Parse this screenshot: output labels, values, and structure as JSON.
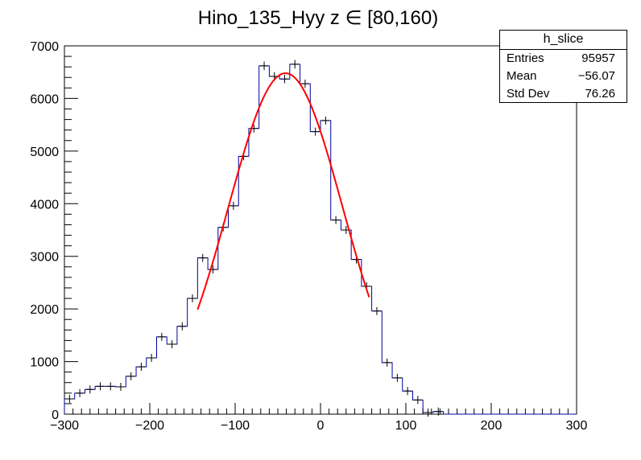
{
  "chart_data": {
    "type": "histogram",
    "title": "Hino_135_Hyy z  ∈ [80,160)",
    "xlabel": "",
    "ylabel": "",
    "xlim": [
      -300,
      300
    ],
    "ylim": [
      0,
      7000
    ],
    "x_ticks": [
      -300,
      -200,
      -100,
      0,
      100,
      200,
      300
    ],
    "x_tick_labels": [
      "−300",
      "−200",
      "−100",
      "0",
      "100",
      "200",
      "300"
    ],
    "y_ticks": [
      0,
      1000,
      2000,
      3000,
      4000,
      5000,
      6000,
      7000
    ],
    "y_tick_labels": [
      "0",
      "1000",
      "2000",
      "3000",
      "4000",
      "5000",
      "6000",
      "7000"
    ],
    "bin_width": 12,
    "bin_start": -300,
    "bin_values": [
      290,
      400,
      470,
      530,
      530,
      520,
      720,
      900,
      1070,
      1470,
      1330,
      1670,
      2200,
      2970,
      2750,
      3550,
      3960,
      4900,
      5430,
      6620,
      6420,
      6370,
      6650,
      6280,
      5370,
      5580,
      3690,
      3500,
      2940,
      2430,
      1960,
      980,
      690,
      440,
      270,
      30,
      50,
      0,
      0,
      0,
      0,
      0,
      0,
      0,
      0,
      0,
      0,
      0,
      0,
      0
    ],
    "fit": {
      "function": "gaussian",
      "amplitude": 6480,
      "mean": -41,
      "sigma": 67,
      "x_range": [
        -144,
        57
      ],
      "color": "#ff0000"
    },
    "histogram_color": "#000099",
    "grid": false
  },
  "stats": {
    "title": "h_slice",
    "rows": [
      {
        "label": "Entries",
        "value": "95957"
      },
      {
        "label": "Mean",
        "value": "−56.07"
      },
      {
        "label": "Std Dev",
        "value": "76.26"
      }
    ]
  }
}
